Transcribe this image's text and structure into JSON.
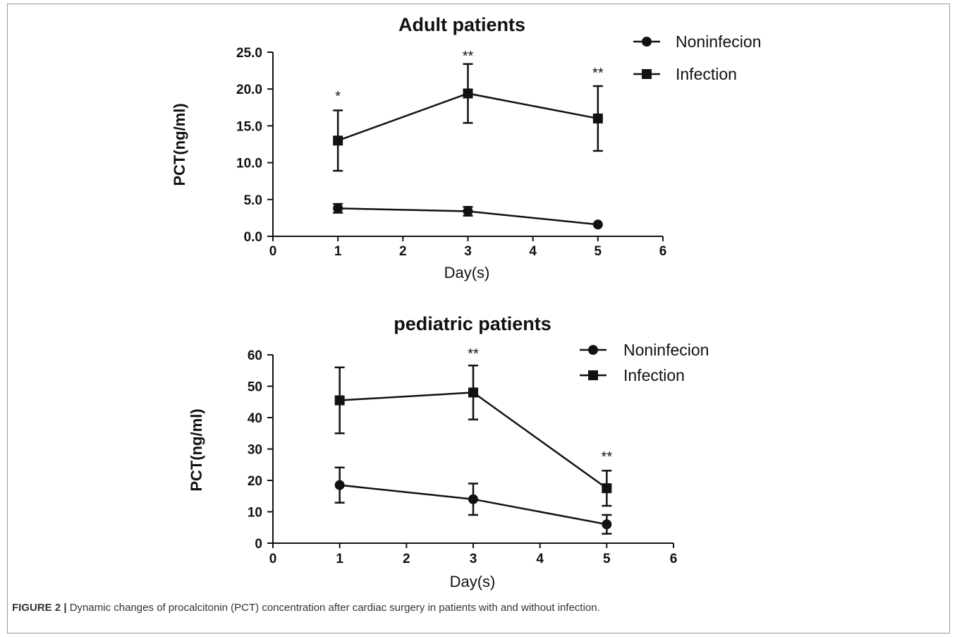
{
  "caption": {
    "label": "FIGURE 2 |",
    "text": "Dynamic changes of procalcitonin (PCT) concentration after cardiac surgery in patients with and without infection."
  },
  "chart_data": [
    {
      "type": "line",
      "title": "Adult patients",
      "xlabel": "Day(s)",
      "ylabel": "PCT(ng/ml)",
      "xlim": [
        0,
        6
      ],
      "ylim": [
        0,
        25
      ],
      "x_ticks": [
        "0",
        "1",
        "2",
        "3",
        "4",
        "5",
        "6"
      ],
      "y_ticks": [
        "0.0",
        "5.0",
        "10.0",
        "15.0",
        "20.0",
        "25.0"
      ],
      "x": [
        1,
        3,
        5
      ],
      "legend_position": "top-right",
      "series": [
        {
          "name": "Noninfecion",
          "marker": "circle",
          "values": [
            3.8,
            3.4,
            1.6
          ],
          "errors": [
            0.6,
            0.6,
            0.0
          ]
        },
        {
          "name": "Infection",
          "marker": "square",
          "values": [
            13.0,
            19.4,
            16.0
          ],
          "errors": [
            4.1,
            4.0,
            4.4
          ]
        }
      ],
      "significance": [
        "*",
        "**",
        "**"
      ],
      "grid": false
    },
    {
      "type": "line",
      "title": "pediatric patients",
      "xlabel": "Day(s)",
      "ylabel": "PCT(ng/ml)",
      "xlim": [
        0,
        6
      ],
      "ylim": [
        0,
        60
      ],
      "x_ticks": [
        "0",
        "1",
        "2",
        "3",
        "4",
        "5",
        "6"
      ],
      "y_ticks": [
        "0",
        "10",
        "20",
        "30",
        "40",
        "50",
        "60"
      ],
      "x": [
        1,
        3,
        5
      ],
      "legend_position": "top-right",
      "series": [
        {
          "name": "Noninfecion",
          "marker": "circle",
          "values": [
            18.5,
            14.0,
            6.0
          ],
          "errors": [
            5.6,
            5.0,
            3.0
          ]
        },
        {
          "name": "Infection",
          "marker": "square",
          "values": [
            45.5,
            48.0,
            17.5
          ],
          "errors": [
            10.5,
            8.6,
            5.6
          ]
        }
      ],
      "significance": [
        "",
        "**",
        "**"
      ],
      "grid": false
    }
  ]
}
